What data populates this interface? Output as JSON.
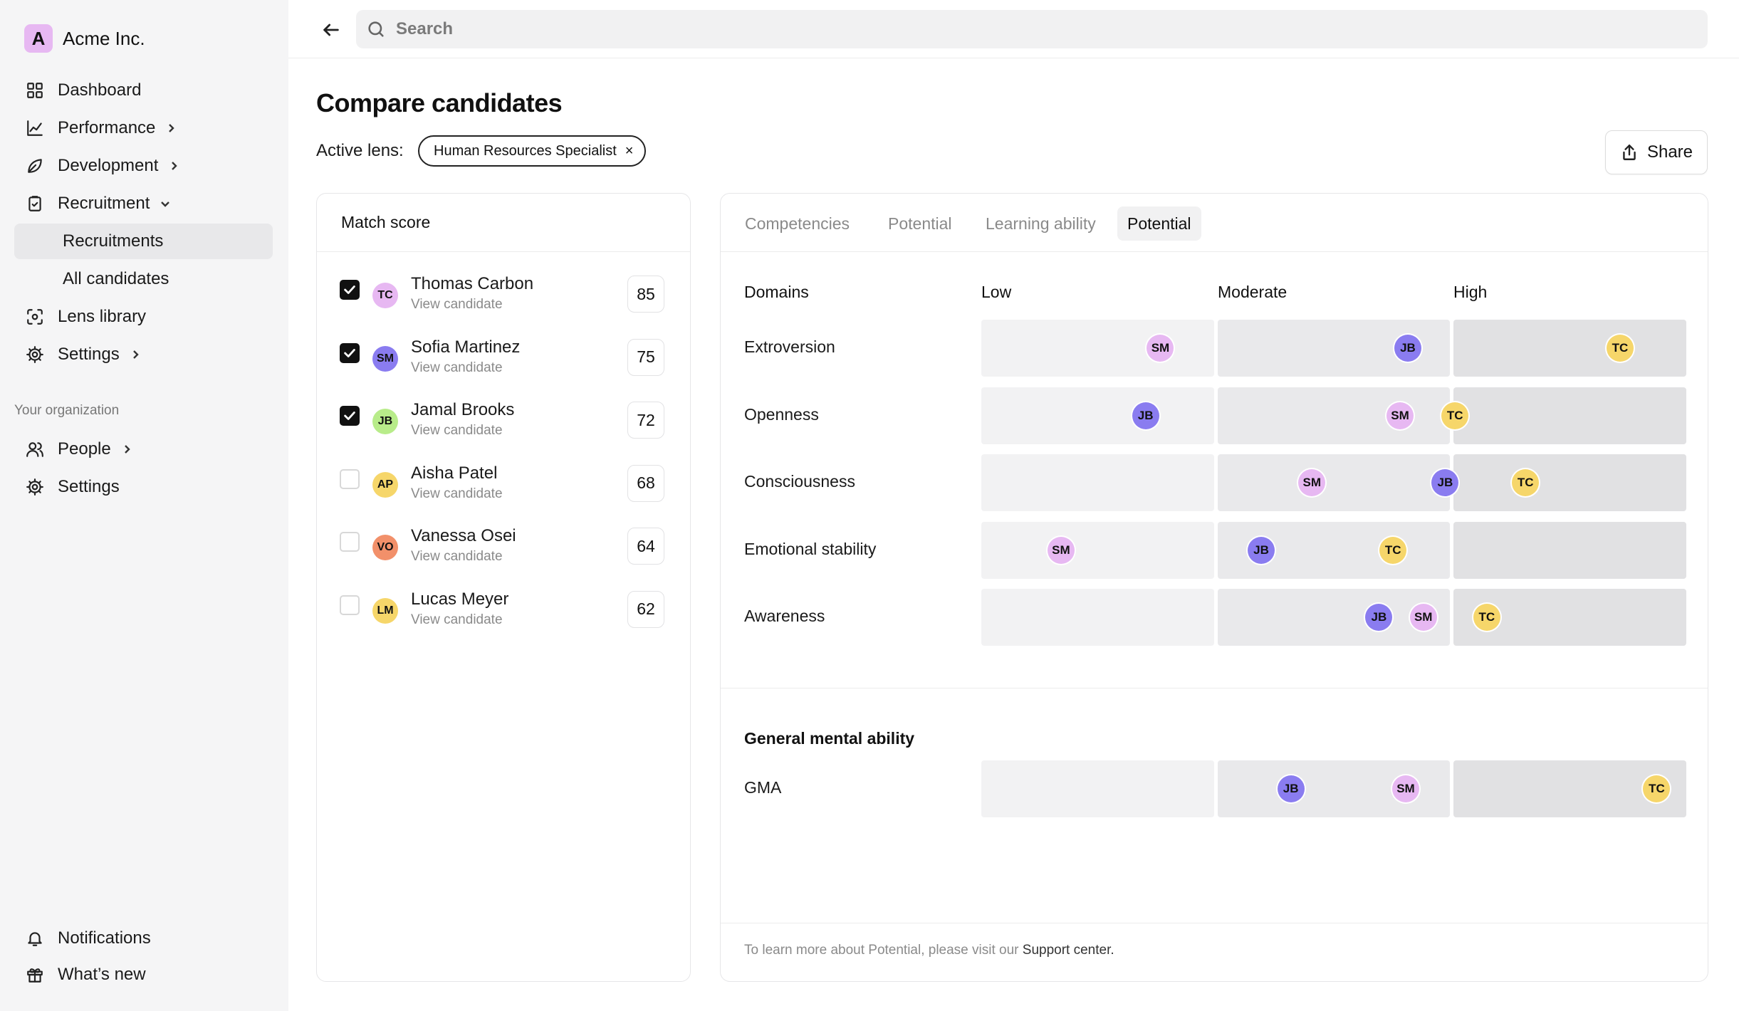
{
  "brand": {
    "logo_letter": "A",
    "name": "Acme Inc."
  },
  "sidebar": {
    "items": [
      {
        "label": "Dashboard",
        "icon": "grid-icon"
      },
      {
        "label": "Performance",
        "icon": "chart-line-icon"
      },
      {
        "label": "Development",
        "icon": "leaf-icon"
      },
      {
        "label": "Recruitment",
        "icon": "clipboard-icon"
      },
      {
        "label": "Recruitments"
      },
      {
        "label": "All candidates"
      },
      {
        "label": "Lens library",
        "icon": "scan-icon"
      },
      {
        "label": "Settings",
        "icon": "gear-icon"
      }
    ],
    "org_label": "Your organization",
    "org_items": [
      {
        "label": "People",
        "icon": "users-icon"
      },
      {
        "label": "Settings",
        "icon": "gear-icon"
      }
    ],
    "bottom_items": [
      {
        "label": "Notifications",
        "icon": "bell-icon"
      },
      {
        "label": "What’s new",
        "icon": "gift-icon"
      }
    ]
  },
  "search": {
    "placeholder": "Search"
  },
  "page": {
    "title": "Compare candidates",
    "lens_label": "Active lens:",
    "lens_value": "Human Resources Specialist",
    "lens_remove": "×",
    "share_label": "Share"
  },
  "match": {
    "title": "Match score",
    "candidates": [
      {
        "initials": "TC",
        "name": "Thomas Carbon",
        "link": "View candidate",
        "score": "85",
        "checked": true,
        "color": "#e7b8f2"
      },
      {
        "initials": "SM",
        "name": "Sofia Martinez",
        "link": "View candidate",
        "score": "75",
        "checked": true,
        "color": "#8a7cf0"
      },
      {
        "initials": "JB",
        "name": "Jamal Brooks",
        "link": "View candidate",
        "score": "72",
        "checked": true,
        "color": "#b8ec8a"
      },
      {
        "initials": "AP",
        "name": "Aisha Patel",
        "link": "View candidate",
        "score": "68",
        "checked": false,
        "color": "#f6d66a"
      },
      {
        "initials": "VO",
        "name": "Vanessa Osei",
        "link": "View candidate",
        "score": "64",
        "checked": false,
        "color": "#f2906a"
      },
      {
        "initials": "LM",
        "name": "Lucas Meyer",
        "link": "View candidate",
        "score": "62",
        "checked": false,
        "color": "#f6d66a"
      }
    ]
  },
  "potential": {
    "tabs": [
      "Competencies",
      "Potential",
      "Learning ability",
      "Potential"
    ],
    "active_tab": 3,
    "headers": {
      "domains": "Domains",
      "low": "Low",
      "moderate": "Moderate",
      "high": "High"
    },
    "avatar_colors": {
      "SM": "#e7b8f2",
      "JB": "#8a7cf0",
      "TC": "#f6d66a"
    },
    "rows": [
      {
        "label": "Extroversion",
        "markers": [
          {
            "initials": "SM",
            "pos": 0.254
          },
          {
            "initials": "JB",
            "pos": 0.605
          },
          {
            "initials": "TC",
            "pos": 0.906
          }
        ]
      },
      {
        "label": "Openness",
        "markers": [
          {
            "initials": "JB",
            "pos": 0.233
          },
          {
            "initials": "SM",
            "pos": 0.594
          },
          {
            "initials": "TC",
            "pos": 0.672
          }
        ]
      },
      {
        "label": "Consciousness",
        "markers": [
          {
            "initials": "SM",
            "pos": 0.469
          },
          {
            "initials": "JB",
            "pos": 0.658
          },
          {
            "initials": "TC",
            "pos": 0.772
          }
        ]
      },
      {
        "label": "Emotional stability",
        "markers": [
          {
            "initials": "SM",
            "pos": 0.113
          },
          {
            "initials": "JB",
            "pos": 0.397
          },
          {
            "initials": "TC",
            "pos": 0.584
          }
        ]
      },
      {
        "label": "Awareness",
        "markers": [
          {
            "initials": "JB",
            "pos": 0.564
          },
          {
            "initials": "SM",
            "pos": 0.627
          },
          {
            "initials": "TC",
            "pos": 0.717
          }
        ]
      }
    ],
    "gma_title": "General mental ability",
    "gma_rows": [
      {
        "label": "GMA",
        "markers": [
          {
            "initials": "JB",
            "pos": 0.439
          },
          {
            "initials": "SM",
            "pos": 0.602
          },
          {
            "initials": "TC",
            "pos": 0.958
          }
        ]
      }
    ],
    "footer_text": "To learn more about Potential, please visit our ",
    "footer_link": "Support center."
  }
}
